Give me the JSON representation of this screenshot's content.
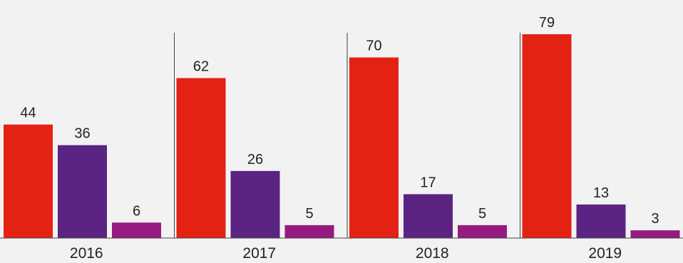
{
  "chart_data": {
    "type": "bar",
    "categories": [
      "2016",
      "2017",
      "2018",
      "2019"
    ],
    "series": [
      {
        "values": [
          44,
          62,
          70,
          79
        ],
        "color": "#e32214"
      },
      {
        "values": [
          36,
          26,
          17,
          13
        ],
        "color": "#5b2483"
      },
      {
        "values": [
          6,
          5,
          5,
          3
        ],
        "color": "#951b81"
      }
    ],
    "ylim": [
      0,
      80
    ],
    "grid": false,
    "legend": "none",
    "title": "",
    "xlabel": "",
    "ylabel": ""
  }
}
